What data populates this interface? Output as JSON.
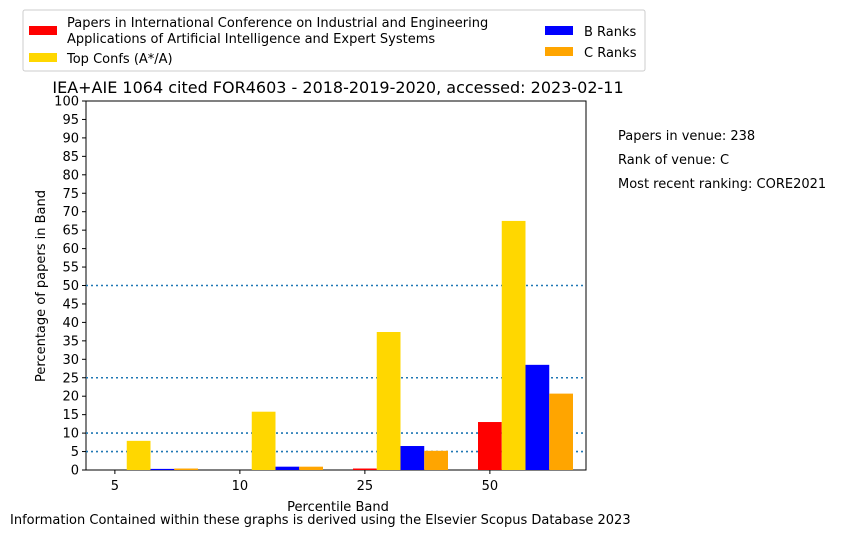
{
  "chart_data": {
    "type": "bar",
    "title": "IEA+AIE 1064 cited FOR4603 - 2018-2019-2020, accessed: 2023-02-11",
    "xlabel": "Percentile Band",
    "ylabel": "Percentage of papers in Band",
    "categories": [
      "5",
      "10",
      "25",
      "50"
    ],
    "ylim": [
      0,
      100
    ],
    "yticks": [
      "0",
      "5",
      "10",
      "15",
      "20",
      "25",
      "30",
      "35",
      "40",
      "45",
      "50",
      "55",
      "60",
      "65",
      "70",
      "75",
      "80",
      "85",
      "90",
      "95",
      "100"
    ],
    "reference_lines": [
      5,
      10,
      25,
      50
    ],
    "series": [
      {
        "name": "Papers in International Conference on Industrial and Engineering Applications of Artificial Intelligence and Expert Systems",
        "color": "#ff0000",
        "values": [
          0,
          0,
          0.4,
          13.0
        ]
      },
      {
        "name": "Top Confs (A*/A)",
        "color": "#ffd700",
        "values": [
          7.9,
          15.8,
          37.4,
          67.5
        ]
      },
      {
        "name": "B Ranks",
        "color": "#0000ff",
        "values": [
          0.3,
          0.9,
          6.5,
          28.5
        ]
      },
      {
        "name": "C Ranks",
        "color": "#ffa500",
        "values": [
          0.4,
          0.9,
          5.2,
          20.7
        ]
      }
    ],
    "legend": {
      "placement": "top",
      "labels": [
        "Papers in International Conference on Industrial and Engineering",
        "Applications of Artificial Intelligence and Expert Systems",
        "Top Confs (A*/A)",
        "B Ranks",
        "C Ranks"
      ]
    },
    "annotations": [
      "Papers in venue: 238",
      "Rank of venue: C",
      "Most recent ranking: CORE2021"
    ],
    "footer": "Information Contained within these graphs is derived using the Elsevier Scopus Database 2023"
  }
}
